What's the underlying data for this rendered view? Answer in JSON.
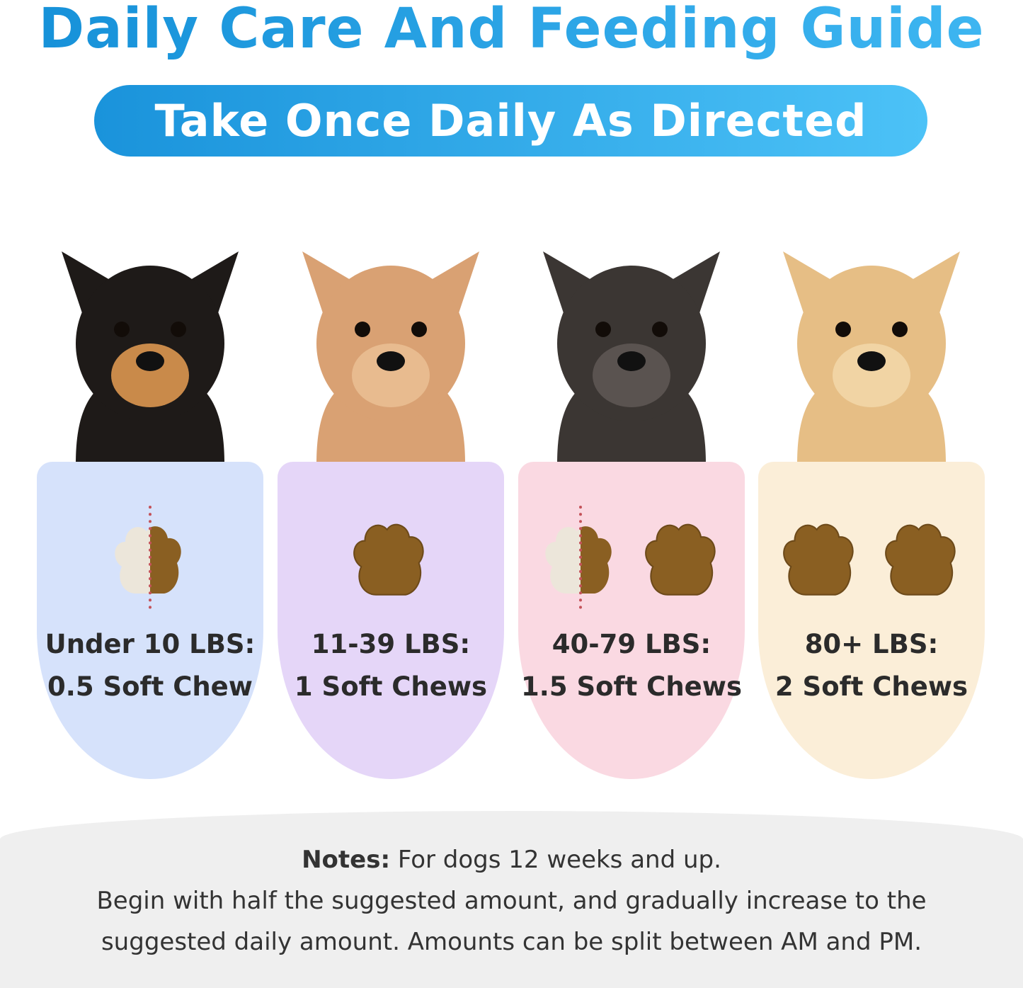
{
  "title": "Daily Care And Feeding Guide",
  "subtitle": "Take Once Daily As Directed",
  "colors": {
    "title_blue": "#1590d8",
    "pill_blue": "#2aa6e8",
    "card_blue": "#d6e2fb",
    "card_purple": "#e5d6f8",
    "card_pink": "#fad9e2",
    "card_cream": "#fbeed8",
    "chew_brown": "#8a5f22"
  },
  "cards": [
    {
      "dog": "chihuahua",
      "weight": "Under 10 LBS:",
      "dose": "0.5 Soft Chew",
      "chews": 0.5
    },
    {
      "dog": "poodle",
      "weight": "11-39 LBS:",
      "dose": "1 Soft Chews",
      "chews": 1
    },
    {
      "dog": "french-bulldog",
      "weight": "40-79 LBS:",
      "dose": "1.5 Soft Chews",
      "chews": 1.5
    },
    {
      "dog": "golden-retriever",
      "weight": "80+ LBS:",
      "dose": "2 Soft Chews",
      "chews": 2
    }
  ],
  "notes": {
    "label": "Notes:",
    "line1": "For dogs 12 weeks and up.",
    "line2": "Begin with half the suggested amount, and gradually increase to the",
    "line3": "suggested daily amount. Amounts can be split between AM and PM."
  }
}
